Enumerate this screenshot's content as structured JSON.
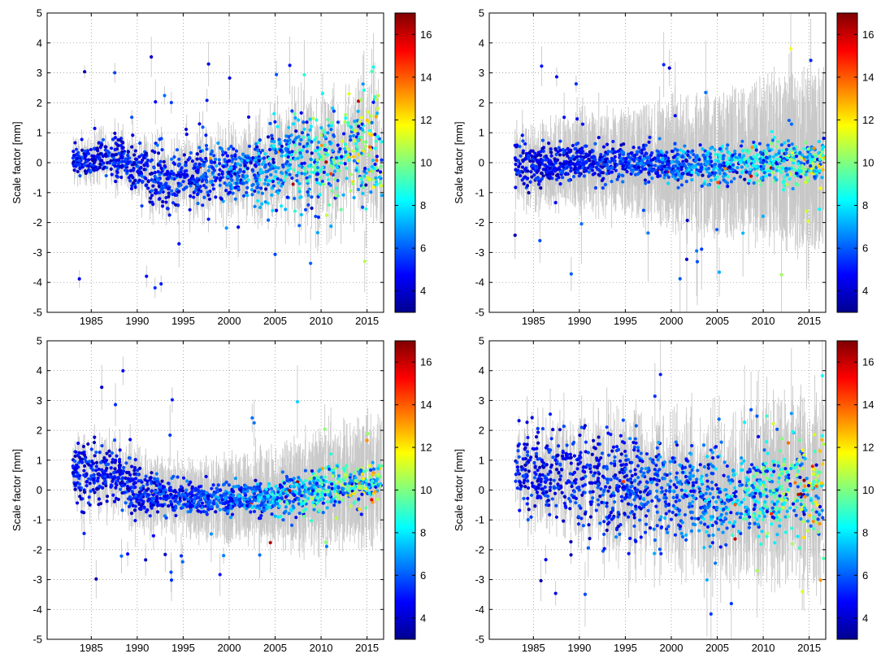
{
  "colorbar": {
    "min": 3,
    "max": 17,
    "tick_labels": [
      "4",
      "6",
      "8",
      "10",
      "12",
      "14",
      "16"
    ],
    "colormap": "jet"
  },
  "chart_data": [
    {
      "type": "scatter",
      "ylabel": "Scale factor [mm]",
      "xlim": [
        1980.2,
        2016.8
      ],
      "ylim": [
        -5,
        5
      ],
      "x_ticks": [
        "1985",
        "1990",
        "1995",
        "2000",
        "2005",
        "2010",
        "2015"
      ],
      "y_ticks": [
        "-5",
        "-4",
        "-3",
        "-2",
        "-1",
        "0",
        "1",
        "2",
        "3",
        "4",
        "5"
      ],
      "grid": true,
      "trend": [
        [
          1984,
          0.1
        ],
        [
          1988,
          0.2
        ],
        [
          1991,
          -0.3
        ],
        [
          1993,
          -0.7
        ],
        [
          1995,
          -0.3
        ],
        [
          2000,
          -0.3
        ],
        [
          2005,
          -0.1
        ],
        [
          2010,
          0.2
        ],
        [
          2016,
          0.5
        ]
      ],
      "scatter_width": [
        [
          1984,
          0.4
        ],
        [
          1988,
          0.6
        ],
        [
          1992,
          0.9
        ],
        [
          2000,
          0.7
        ],
        [
          2005,
          1.0
        ],
        [
          2010,
          1.4
        ],
        [
          2016,
          1.6
        ]
      ],
      "error_bar_scale": 0.9,
      "colorbar": [
        3,
        17
      ]
    },
    {
      "type": "scatter",
      "ylabel": "Scale factor [mm]",
      "xlim": [
        1980.2,
        2016.8
      ],
      "ylim": [
        -5,
        5
      ],
      "x_ticks": [
        "1985",
        "1990",
        "1995",
        "2000",
        "2005",
        "2010",
        "2015"
      ],
      "y_ticks": [
        "-5",
        "-4",
        "-3",
        "-2",
        "-1",
        "0",
        "1",
        "2",
        "3",
        "4",
        "5"
      ],
      "grid": true,
      "trend": [
        [
          1983,
          -0.1
        ],
        [
          1990,
          0.0
        ],
        [
          1995,
          0.0
        ],
        [
          2000,
          -0.1
        ],
        [
          2005,
          -0.1
        ],
        [
          2010,
          0.0
        ],
        [
          2016,
          0.0
        ]
      ],
      "scatter_width": [
        [
          1983,
          0.6
        ],
        [
          1990,
          0.5
        ],
        [
          1995,
          0.5
        ],
        [
          2000,
          0.5
        ],
        [
          2005,
          0.5
        ],
        [
          2010,
          0.6
        ],
        [
          2016,
          0.6
        ]
      ],
      "error_bar_scale": 1.8,
      "colorbar": [
        3,
        17
      ]
    },
    {
      "type": "scatter",
      "ylabel": "Scale factor [mm]",
      "xlim": [
        1980.2,
        2016.8
      ],
      "ylim": [
        -5,
        5
      ],
      "x_ticks": [
        "1985",
        "1990",
        "1995",
        "2000",
        "2005",
        "2010",
        "2015"
      ],
      "y_ticks": [
        "-5",
        "-4",
        "-3",
        "-2",
        "-1",
        "0",
        "1",
        "2",
        "3",
        "4",
        "5"
      ],
      "grid": true,
      "trend": [
        [
          1984,
          0.6
        ],
        [
          1988,
          0.5
        ],
        [
          1990,
          -0.1
        ],
        [
          1993,
          -0.2
        ],
        [
          1995,
          -0.2
        ],
        [
          2000,
          -0.3
        ],
        [
          2005,
          -0.2
        ],
        [
          2010,
          0.0
        ],
        [
          2016,
          0.3
        ]
      ],
      "scatter_width": [
        [
          1984,
          0.9
        ],
        [
          1990,
          0.6
        ],
        [
          1995,
          0.5
        ],
        [
          2000,
          0.4
        ],
        [
          2005,
          0.5
        ],
        [
          2010,
          0.6
        ],
        [
          2016,
          0.6
        ]
      ],
      "error_bar_scale": 1.2,
      "colorbar": [
        3,
        17
      ]
    },
    {
      "type": "scatter",
      "ylabel": "Scale factor [mm]",
      "xlim": [
        1980.2,
        2016.8
      ],
      "ylim": [
        -5,
        5
      ],
      "x_ticks": [
        "1985",
        "1990",
        "1995",
        "2000",
        "2005",
        "2010",
        "2015"
      ],
      "y_ticks": [
        "-5",
        "-4",
        "-3",
        "-2",
        "-1",
        "0",
        "1",
        "2",
        "3",
        "4",
        "5"
      ],
      "grid": true,
      "trend": [
        [
          1983,
          0.6
        ],
        [
          1990,
          0.3
        ],
        [
          1995,
          0.2
        ],
        [
          2000,
          0.0
        ],
        [
          2005,
          -0.2
        ],
        [
          2010,
          -0.1
        ],
        [
          2016,
          0.0
        ]
      ],
      "scatter_width": [
        [
          1983,
          1.1
        ],
        [
          1990,
          1.4
        ],
        [
          1995,
          1.4
        ],
        [
          2000,
          1.3
        ],
        [
          2005,
          1.1
        ],
        [
          2010,
          1.2
        ],
        [
          2016,
          1.3
        ]
      ],
      "error_bar_scale": 1.6,
      "colorbar": [
        3,
        17
      ]
    }
  ]
}
